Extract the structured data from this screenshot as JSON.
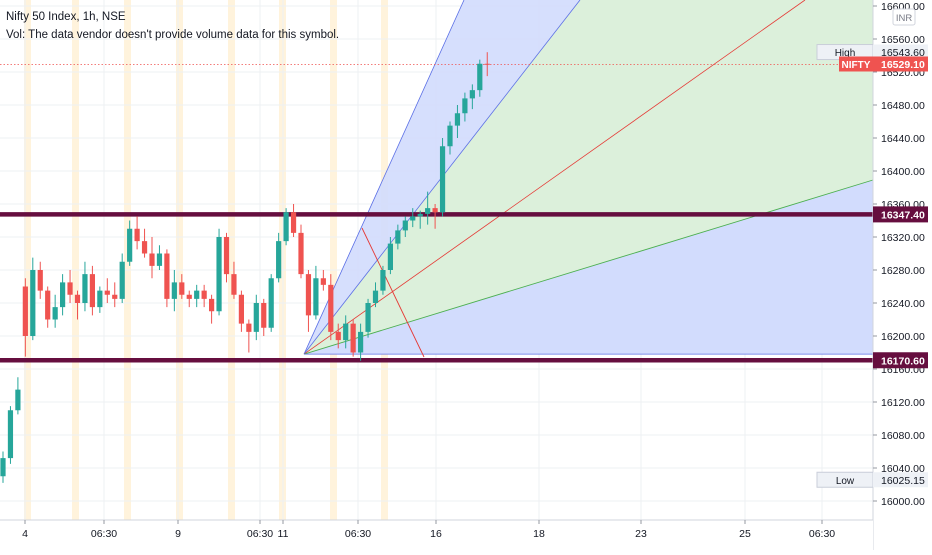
{
  "legend": {
    "symbol": "Nifty 50 Index, 1h, NSE",
    "vol_note": "Vol: The data vendor doesn't provide volume data for this symbol."
  },
  "price_axis": {
    "currency_label": "INR",
    "ticks": [
      "16600.00",
      "16560.00",
      "16520.00",
      "16480.00",
      "16440.00",
      "16400.00",
      "16360.00",
      "16320.00",
      "16280.00",
      "16240.00",
      "16200.00",
      "16160.00",
      "16120.00",
      "16080.00",
      "16040.00",
      "16000.00"
    ],
    "high_tag": {
      "label": "High",
      "value": "16543.60"
    },
    "last_tag": {
      "label": "NIFTY",
      "value": "16529.10"
    },
    "low_tag": {
      "label": "Low",
      "value": "16025.15"
    },
    "level_tags": [
      "16347.40",
      "16170.60"
    ]
  },
  "time_axis": {
    "labels": [
      "4",
      "06:30",
      "9",
      "06:30",
      "11",
      "06:30",
      "16",
      "18",
      "23",
      "25",
      "06:30"
    ]
  },
  "colors": {
    "up": "#26a69a",
    "down": "#ef5350",
    "level_line": "#660e3f",
    "fan_blue": "#5b6fe6",
    "fan_green": "#4caf50",
    "fan_red": "#e53935",
    "fill_blue": "#d2dcfd",
    "fill_green": "#dcf0d9",
    "session_band": "#fff3dc",
    "last_price": "#ef5350"
  },
  "chart_data": {
    "type": "candlestick",
    "title": "Nifty 50 Index, 1h, NSE",
    "ylim": [
      15976,
      16606
    ],
    "horizontal_levels": [
      16347.4,
      16170.6
    ],
    "high": 16543.6,
    "low": 16025.15,
    "last": 16529.1,
    "candles": [
      [
        16030,
        16060,
        16022,
        16052
      ],
      [
        16052,
        16115,
        16045,
        16110
      ],
      [
        16110,
        16150,
        16105,
        16135
      ],
      [
        16260,
        16270,
        16175,
        16200
      ],
      [
        16200,
        16295,
        16195,
        16280
      ],
      [
        16280,
        16290,
        16245,
        16255
      ],
      [
        16255,
        16260,
        16210,
        16220
      ],
      [
        16220,
        16250,
        16210,
        16235
      ],
      [
        16235,
        16275,
        16225,
        16265
      ],
      [
        16265,
        16280,
        16240,
        16250
      ],
      [
        16250,
        16255,
        16220,
        16240
      ],
      [
        16240,
        16290,
        16230,
        16275
      ],
      [
        16275,
        16285,
        16225,
        16235
      ],
      [
        16235,
        16260,
        16228,
        16255
      ],
      [
        16255,
        16270,
        16240,
        16250
      ],
      [
        16250,
        16265,
        16235,
        16245
      ],
      [
        16245,
        16300,
        16240,
        16290
      ],
      [
        16290,
        16340,
        16285,
        16330
      ],
      [
        16330,
        16345,
        16305,
        16315
      ],
      [
        16315,
        16330,
        16295,
        16300
      ],
      [
        16300,
        16320,
        16270,
        16285
      ],
      [
        16285,
        16310,
        16280,
        16300
      ],
      [
        16300,
        16305,
        16235,
        16245
      ],
      [
        16245,
        16280,
        16230,
        16265
      ],
      [
        16265,
        16275,
        16245,
        16250
      ],
      [
        16250,
        16255,
        16235,
        16245
      ],
      [
        16245,
        16262,
        16235,
        16255
      ],
      [
        16255,
        16262,
        16235,
        16245
      ],
      [
        16245,
        16250,
        16215,
        16230
      ],
      [
        16230,
        16330,
        16225,
        16320
      ],
      [
        16320,
        16325,
        16265,
        16275
      ],
      [
        16275,
        16290,
        16245,
        16250
      ],
      [
        16250,
        16255,
        16205,
        16215
      ],
      [
        16215,
        16220,
        16180,
        16205
      ],
      [
        16205,
        16250,
        16195,
        16240
      ],
      [
        16240,
        16245,
        16200,
        16210
      ],
      [
        16210,
        16275,
        16205,
        16270
      ],
      [
        16270,
        16325,
        16265,
        16315
      ],
      [
        16315,
        16355,
        16310,
        16350
      ],
      [
        16350,
        16360,
        16320,
        16325
      ],
      [
        16325,
        16335,
        16270,
        16275
      ],
      [
        16275,
        16280,
        16205,
        16225
      ],
      [
        16225,
        16285,
        16220,
        16270
      ],
      [
        16270,
        16280,
        16255,
        16262
      ],
      [
        16262,
        16275,
        16195,
        16205
      ],
      [
        16205,
        16215,
        16185,
        16195
      ],
      [
        16195,
        16225,
        16185,
        16215
      ],
      [
        16215,
        16220,
        16175,
        16180
      ],
      [
        16180,
        16215,
        16170,
        16205
      ],
      [
        16205,
        16245,
        16198,
        16240
      ],
      [
        16240,
        16265,
        16235,
        16255
      ],
      [
        16255,
        16285,
        16250,
        16280
      ],
      [
        16280,
        16320,
        16275,
        16312
      ],
      [
        16312,
        16335,
        16305,
        16328
      ],
      [
        16328,
        16345,
        16320,
        16340
      ],
      [
        16340,
        16355,
        16332,
        16345
      ],
      [
        16345,
        16352,
        16330,
        16348
      ],
      [
        16348,
        16375,
        16335,
        16355
      ],
      [
        16355,
        16360,
        16330,
        16350
      ],
      [
        16350,
        16440,
        16345,
        16430
      ],
      [
        16430,
        16460,
        16420,
        16455
      ],
      [
        16455,
        16480,
        16440,
        16470
      ],
      [
        16470,
        16495,
        16460,
        16488
      ],
      [
        16488,
        16505,
        16475,
        16498
      ],
      [
        16498,
        16535,
        16490,
        16530
      ],
      [
        16530,
        16544,
        16515,
        16529
      ]
    ]
  }
}
